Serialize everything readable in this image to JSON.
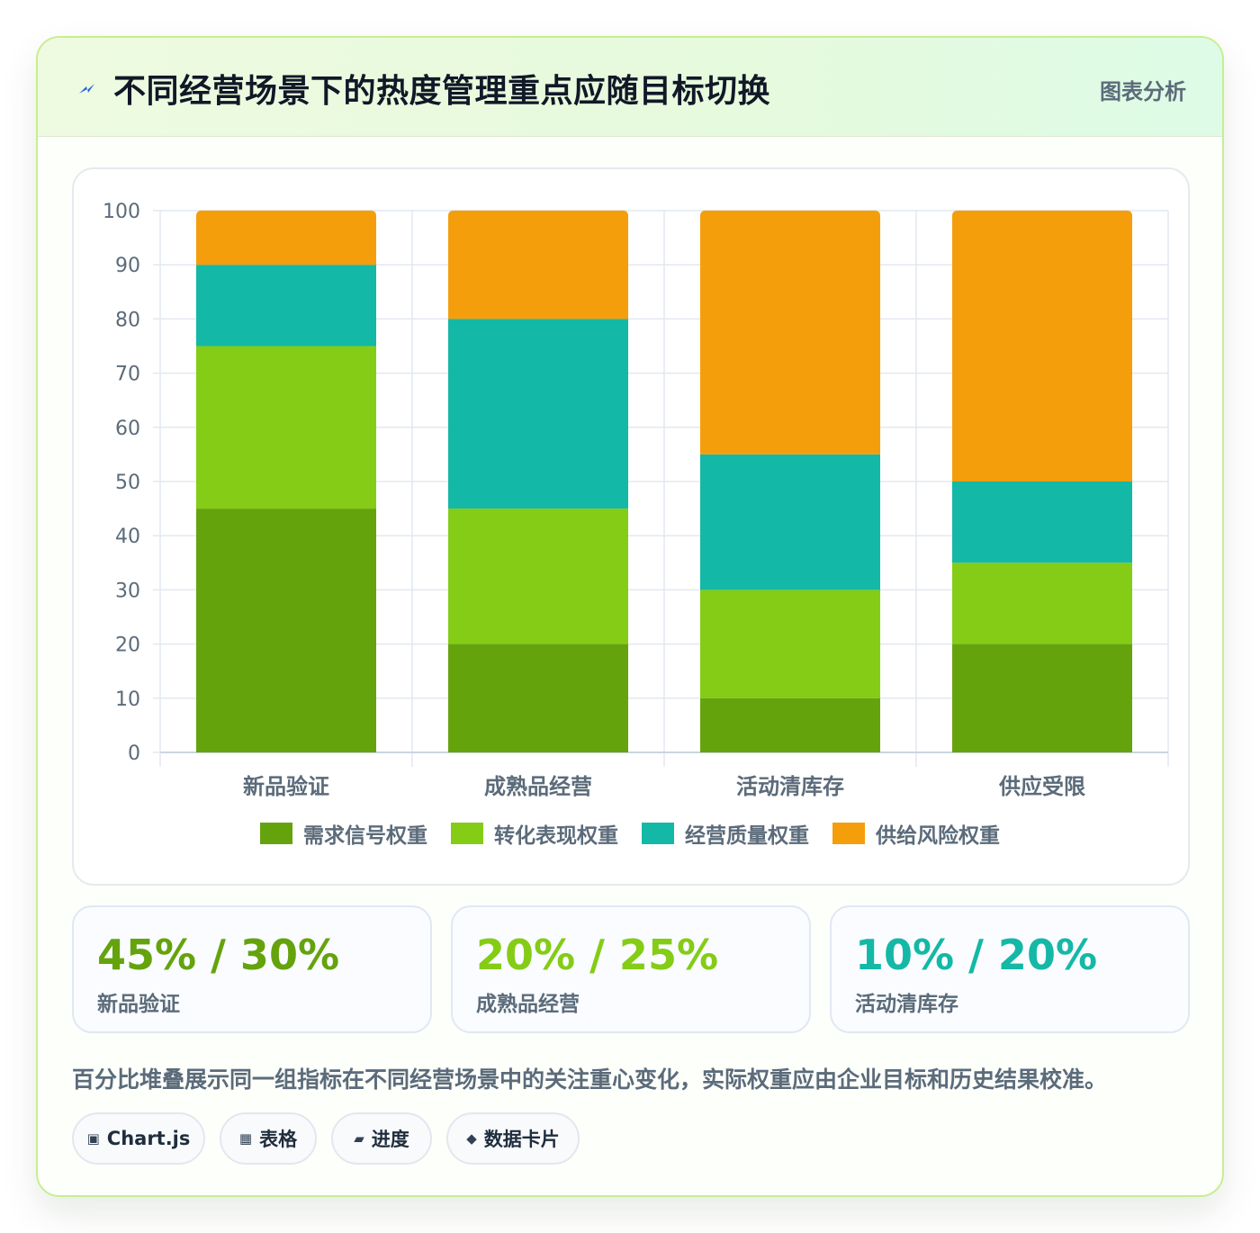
{
  "header": {
    "title": "不同经营场景下的热度管理重点应随目标切换",
    "tag": "图表分析"
  },
  "chart_data": {
    "type": "bar",
    "stacked": true,
    "categories": [
      "新品验证",
      "成熟品经营",
      "活动清库存",
      "供应受限"
    ],
    "series": [
      {
        "name": "需求信号权重",
        "color": "#65a30d",
        "values": [
          45,
          20,
          10,
          20
        ]
      },
      {
        "name": "转化表现权重",
        "color": "#84cc16",
        "values": [
          30,
          25,
          20,
          15
        ]
      },
      {
        "name": "经营质量权重",
        "color": "#14b8a6",
        "values": [
          15,
          35,
          25,
          15
        ]
      },
      {
        "name": "供给风险权重",
        "color": "#f59e0b",
        "values": [
          10,
          20,
          45,
          50
        ]
      }
    ],
    "ylim": [
      0,
      100
    ],
    "yticks": [
      0,
      10,
      20,
      30,
      40,
      50,
      60,
      70,
      80,
      90,
      100
    ],
    "grid": true,
    "legend": "bottom"
  },
  "stats": [
    {
      "value": "45% / 30%",
      "label": "新品验证",
      "color": "#65a30d"
    },
    {
      "value": "20% / 25%",
      "label": "成熟品经营",
      "color": "#84cc16"
    },
    {
      "value": "10% / 20%",
      "label": "活动清库存",
      "color": "#14b8a6"
    }
  ],
  "note": "百分比堆叠展示同一组指标在不同经营场景中的关注重心变化，实际权重应由企业目标和历史结果校准。",
  "pills": [
    {
      "icon": "▣",
      "icon_name": "chart-icon",
      "label": "Chart.js"
    },
    {
      "icon": "▦",
      "icon_name": "table-icon",
      "label": "表格"
    },
    {
      "icon": "▰",
      "icon_name": "progress-icon",
      "label": "进度"
    },
    {
      "icon": "◆",
      "icon_name": "card-icon",
      "label": "数据卡片"
    }
  ]
}
